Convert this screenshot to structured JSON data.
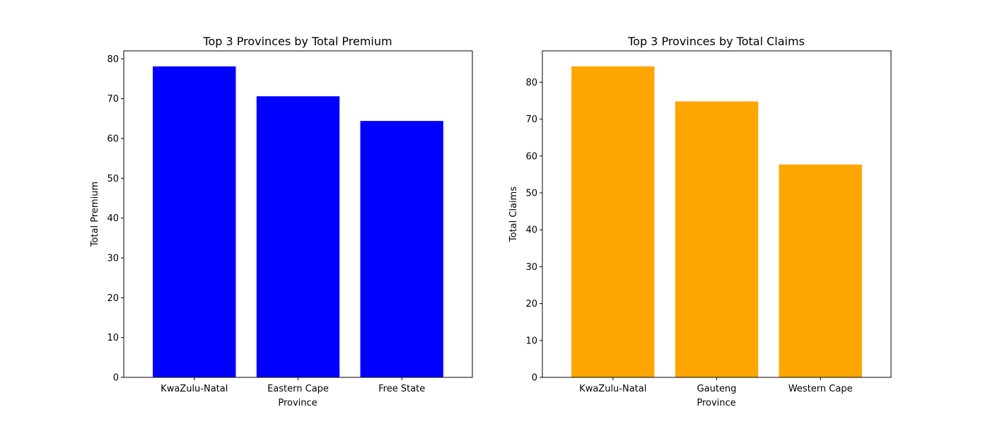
{
  "chart_data": [
    {
      "type": "bar",
      "title": "Top 3 Provinces by Total Premium",
      "xlabel": "Province",
      "ylabel": "Total Premium",
      "categories": [
        "KwaZulu-Natal",
        "Eastern Cape",
        "Free State"
      ],
      "values": [
        78.1,
        70.6,
        64.4
      ],
      "ylim": [
        0,
        82
      ],
      "yticks": [
        0,
        10,
        20,
        30,
        40,
        50,
        60,
        70,
        80
      ],
      "color": "#0000ff",
      "grid": false
    },
    {
      "type": "bar",
      "title": "Top 3 Provinces by Total Claims",
      "xlabel": "Province",
      "ylabel": "Total Claims",
      "categories": [
        "KwaZulu-Natal",
        "Gauteng",
        "Western Cape"
      ],
      "values": [
        84.3,
        74.8,
        57.7
      ],
      "ylim": [
        0,
        88.5
      ],
      "yticks": [
        0,
        10,
        20,
        30,
        40,
        50,
        60,
        70,
        80
      ],
      "color": "#ffa500",
      "grid": false
    }
  ]
}
